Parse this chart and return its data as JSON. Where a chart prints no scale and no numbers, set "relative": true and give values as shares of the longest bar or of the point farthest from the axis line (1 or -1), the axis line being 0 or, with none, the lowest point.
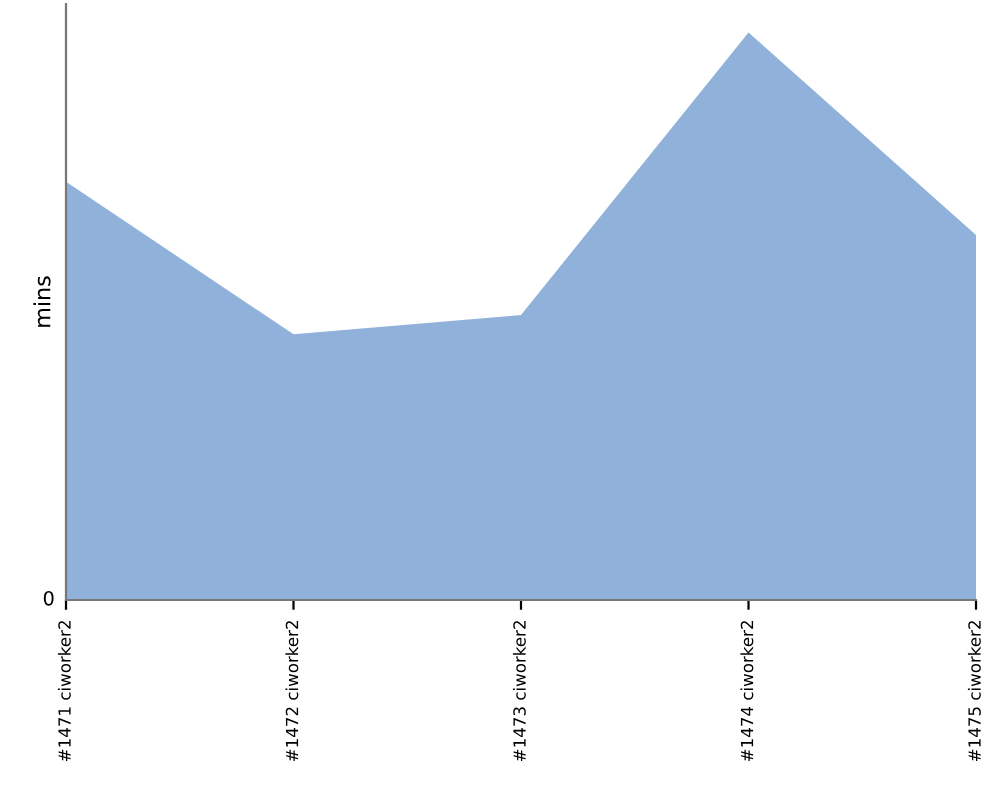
{
  "chart_data": {
    "type": "area",
    "ylabel": "mins",
    "relative": true,
    "categories": [
      "#1471 ciworker2",
      "#1472 ciworker2",
      "#1473 ciworker2",
      "#1474 ciworker2",
      "#1475 ciworker2"
    ],
    "series": [
      {
        "color": "#90b2da",
        "values": [
          0.737,
          0.468,
          0.502,
          1,
          0.643
        ]
      }
    ],
    "annotations": [
      "0"
    ],
    "grid": false,
    "legend": false
  }
}
